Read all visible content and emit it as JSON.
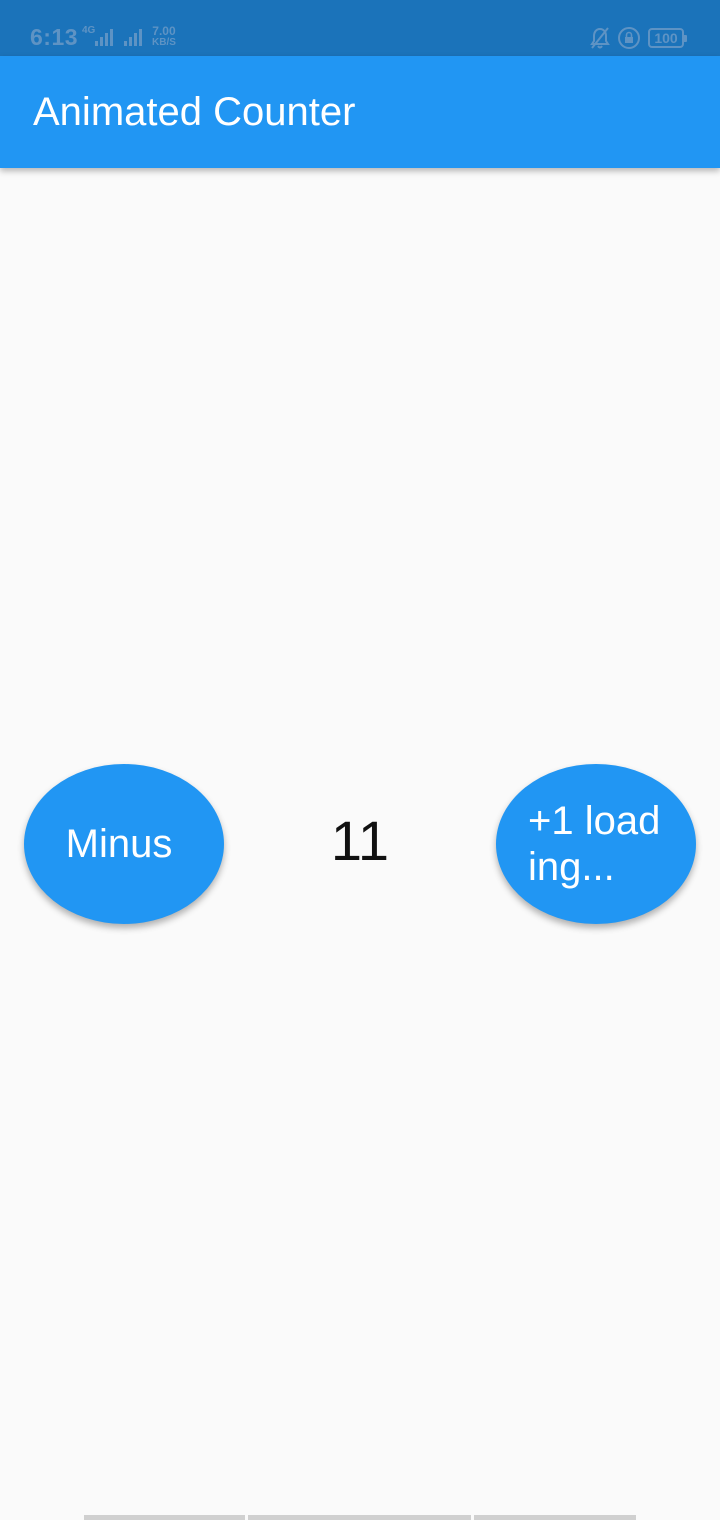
{
  "status_bar": {
    "time": "6:13",
    "network_label": "4G",
    "speed_value": "7.00",
    "speed_unit": "KB/S",
    "battery": "100",
    "icons": [
      "signal-icon",
      "signal-icon",
      "bell-off-icon",
      "lock-rotation-icon",
      "battery-icon"
    ]
  },
  "app_bar": {
    "title": "Animated Counter",
    "color": "#2196F3"
  },
  "counter": {
    "minus_label": "Minus",
    "value": "11",
    "plus_label": "+1 load\ning..."
  },
  "colors": {
    "status_bar": "#1B73BA",
    "background": "#FAFAFA",
    "button": "#2196F3"
  }
}
